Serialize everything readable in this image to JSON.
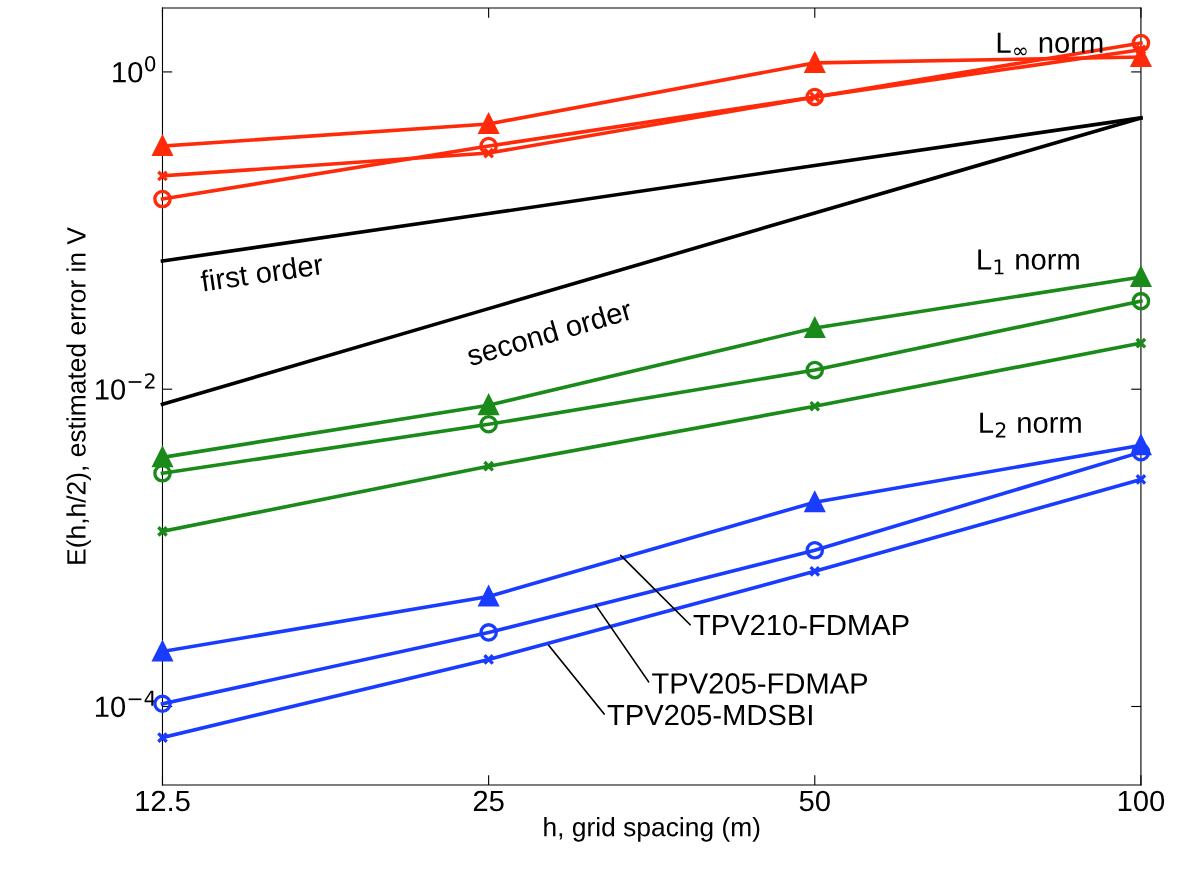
{
  "chart_data": {
    "type": "line",
    "xlabel": "h, grid spacing (m)",
    "ylabel": "E(h,h/2), estimated error in V",
    "x": [
      12.5,
      25,
      50,
      100
    ],
    "log": "xy",
    "grid": false,
    "line_style": "solid",
    "xlim": [
      12.5,
      100
    ],
    "xticks": [
      12.5,
      25,
      50,
      100
    ],
    "ylim": [
      3.2e-05,
      2.53
    ],
    "yticks": [
      {
        "value": 0.0001,
        "label": "10$^{−4}$"
      },
      {
        "value": 0.01,
        "label": "10$^{−2}$"
      },
      {
        "value": 1,
        "label": "10$^{0}$"
      }
    ],
    "series": [
      {
        "color": "#ff2a0a",
        "marker": "triangle",
        "values": [
          0.341,
          0.47,
          1.14,
          1.24
        ]
      },
      {
        "color": "#ff2a0a",
        "marker": "circle",
        "values": [
          0.158,
          0.341,
          0.695,
          1.52
        ]
      },
      {
        "color": "#ff2a0a",
        "marker": "cross",
        "values": [
          0.221,
          0.308,
          0.695,
          1.38
        ]
      },
      {
        "color": "#000000",
        "marker": "none",
        "values": [
          0.0643,
          0.128,
          0.257,
          0.513
        ]
      },
      {
        "color": "#000000",
        "marker": "none",
        "values": [
          0.00804,
          0.0322,
          0.129,
          0.513
        ]
      },
      {
        "color": "#1a8a1a",
        "marker": "triangle",
        "values": [
          0.00372,
          0.00793,
          0.0243,
          0.0509
        ]
      },
      {
        "color": "#1a8a1a",
        "marker": "circle",
        "values": [
          0.00295,
          0.00601,
          0.0132,
          0.0359
        ]
      },
      {
        "color": "#1a8a1a",
        "marker": "cross",
        "values": [
          0.00127,
          0.00327,
          0.00781,
          0.0195
        ]
      },
      {
        "color": "#1a3cff",
        "marker": "triangle",
        "values": [
          0.000222,
          0.000494,
          0.00194,
          0.00443
        ]
      },
      {
        "color": "#1a3cff",
        "marker": "circle",
        "values": [
          0.000104,
          0.000293,
          0.000965,
          0.00401
        ]
      },
      {
        "color": "#1a3cff",
        "marker": "cross",
        "values": [
          6.37e-05,
          0.000198,
          0.000711,
          0.0027
        ]
      }
    ],
    "annotations": [
      "L$_{∞}$ norm",
      "L$_{1}$ norm",
      "L$_{2}$ norm",
      "first order",
      "second order",
      {
        "text": "TPV210-FDMAP",
        "x": 33.1,
        "y": 0.000897
      },
      {
        "text": "TPV205-FDMAP",
        "x": 31.4,
        "y": 0.000434
      },
      {
        "text": "TPV205-MDSBI",
        "x": 28.4,
        "y": 0.000243
      }
    ]
  }
}
